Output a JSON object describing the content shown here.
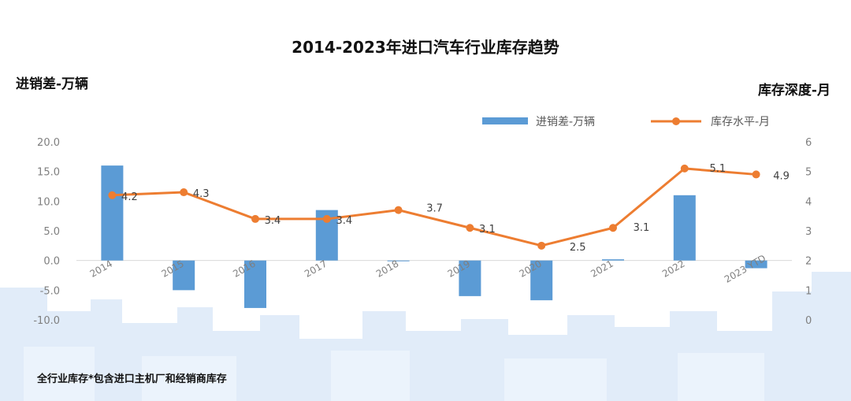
{
  "title": "2014-2023年进口汽车行业库存趋势",
  "left_axis_label": "进销差-万辆",
  "right_axis_label": "库存深度-月",
  "footnote": "全行业库存*包含进口主机厂和经销商库存",
  "colors": {
    "bar": "#5b9bd5",
    "line": "#ed7d31",
    "text": "#111111",
    "tick": "#7f7f7f",
    "skyline": "#dbe9f8"
  },
  "chart_data": {
    "type": "bar+line",
    "categories": [
      "2014",
      "2015",
      "2016",
      "2017",
      "2018",
      "2019",
      "2020",
      "2021",
      "2022",
      "2023 YTD"
    ],
    "series": [
      {
        "name": "进销差-万辆",
        "type": "bar",
        "axis": "left",
        "values": [
          16.0,
          -5.0,
          -8.0,
          8.5,
          0.0,
          -6.0,
          -6.7,
          0.2,
          11.0,
          -1.3
        ]
      },
      {
        "name": "库存水平-月",
        "type": "line",
        "axis": "right",
        "values": [
          4.2,
          4.3,
          3.4,
          3.4,
          3.7,
          3.1,
          2.5,
          3.1,
          5.1,
          4.9
        ],
        "labels": [
          "4.2",
          "4.3",
          "3.4",
          "3.4",
          "3.7",
          "3.1",
          "2.5",
          "3.1",
          "5.1",
          "4.9"
        ]
      }
    ],
    "left_axis": {
      "ylim": [
        -10,
        20
      ],
      "ticks": [
        "20.0",
        "15.0",
        "10.0",
        "5.0",
        "0.0",
        "-5.0",
        "-10.0"
      ]
    },
    "right_axis": {
      "ylim": [
        0,
        6
      ],
      "ticks": [
        "6",
        "5",
        "4",
        "3",
        "2",
        "1",
        "0"
      ]
    },
    "legend_position": "top-right",
    "grid": false
  }
}
